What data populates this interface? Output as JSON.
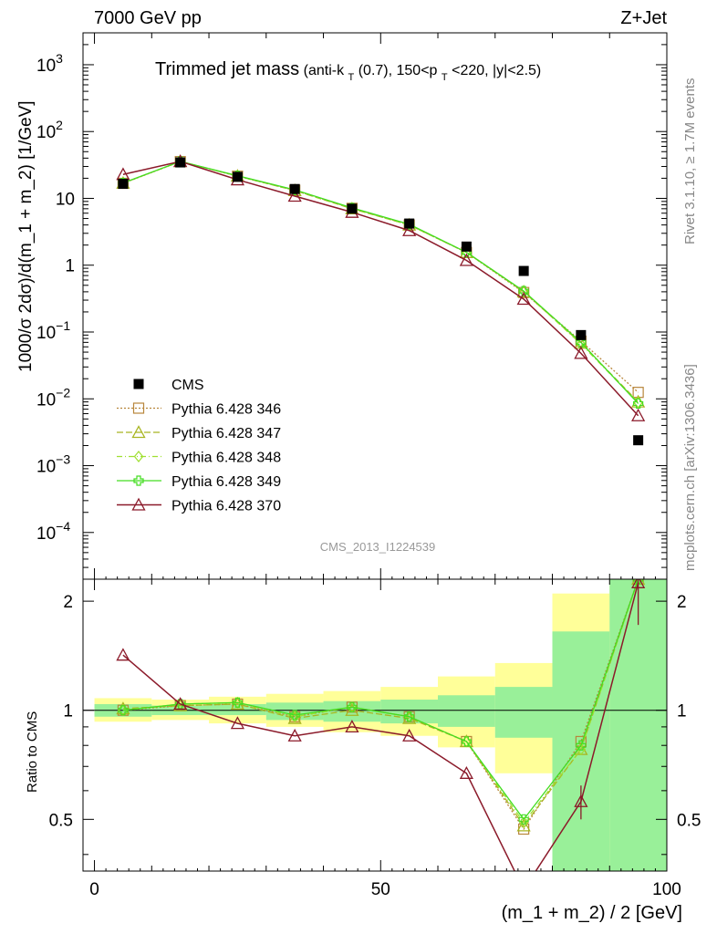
{
  "header": {
    "left": "7000 GeV pp",
    "right": "Z+Jet",
    "title_main": "Trimmed jet mass",
    "title_detail_parts": [
      "(anti-k",
      "T",
      "(0.7), 150<p",
      "T",
      "<220, |y|<2.5)"
    ],
    "rivet": "Rivet 3.1.10, ≥ 1.7M events",
    "mcplots": "mcplots.cern.ch [arXiv:1306.3436]",
    "analysis": "CMS_2013_I1224539"
  },
  "axes": {
    "main_ylabel": "1000/σ 2dσ)/d(m_1 + m_2) [1/GeV]",
    "ratio_ylabel": "Ratio to CMS",
    "xlabel": "(m_1 + m_2) / 2 [GeV]",
    "x_ticks": [
      "0",
      "50",
      "100"
    ],
    "main_y_ticks": [
      {
        "base": "10",
        "exp": "−4"
      },
      {
        "base": "10",
        "exp": "−3"
      },
      {
        "base": "10",
        "exp": "−2"
      },
      {
        "base": "10",
        "exp": "−1"
      },
      {
        "base": "1",
        "exp": ""
      },
      {
        "base": "10",
        "exp": ""
      },
      {
        "base": "10",
        "exp": "2"
      },
      {
        "base": "10",
        "exp": "3"
      }
    ],
    "ratio_y_ticks": [
      "0.5",
      "1",
      "2"
    ]
  },
  "colors": {
    "cms": "#000000",
    "p346": "#b8863b",
    "p347": "#a8b520",
    "p348": "#9fe030",
    "p349": "#44dd22",
    "p370": "#8b1a2a",
    "band_inner": "#99f099",
    "band_outer": "#ffff99"
  },
  "chart_data": {
    "type": "line",
    "x_range": [
      -2,
      100
    ],
    "main_ylim": [
      2e-05,
      3000
    ],
    "main_yscale": "log",
    "ratio_ylim": [
      0.36,
      2.3
    ],
    "ratio_yscale": "log",
    "x": [
      5,
      15,
      25,
      35,
      45,
      55,
      65,
      75,
      85,
      95
    ],
    "bin_edges": [
      0,
      10,
      20,
      30,
      40,
      50,
      60,
      70,
      80,
      90,
      100
    ],
    "cms": [
      16.5,
      34.5,
      21.0,
      13.8,
      7.0,
      4.2,
      1.9,
      0.82,
      0.09,
      0.0024
    ],
    "ratio_band_inner": [
      [
        0.96,
        1.04
      ],
      [
        0.97,
        1.03
      ],
      [
        0.97,
        1.04
      ],
      [
        0.94,
        1.05
      ],
      [
        0.93,
        1.06
      ],
      [
        0.92,
        1.07
      ],
      [
        0.9,
        1.1
      ],
      [
        0.84,
        1.16
      ],
      [
        0.35,
        1.65
      ],
      [
        0.35,
        2.3
      ]
    ],
    "ratio_band_outer": [
      [
        0.93,
        1.08
      ],
      [
        0.94,
        1.07
      ],
      [
        0.92,
        1.09
      ],
      [
        0.9,
        1.11
      ],
      [
        0.87,
        1.13
      ],
      [
        0.85,
        1.16
      ],
      [
        0.79,
        1.24
      ],
      [
        0.67,
        1.35
      ],
      [
        0.36,
        2.1
      ],
      [
        0.36,
        2.3
      ]
    ],
    "series": [
      {
        "name": "Pythia 6.428 346",
        "key": "p346",
        "marker": "square-open",
        "dash": "2,2",
        "values": [
          16.8,
          35.5,
          21.5,
          13.2,
          7.1,
          4.0,
          1.55,
          0.39,
          0.073,
          0.0125
        ],
        "ratio": [
          1.0,
          1.03,
          1.04,
          0.96,
          1.02,
          0.96,
          0.82,
          0.47,
          0.82,
          2.3
        ]
      },
      {
        "name": "Pythia 6.428 347",
        "key": "p347",
        "marker": "triangle-open",
        "dash": "7,3",
        "values": [
          16.9,
          35.6,
          21.6,
          13.1,
          7.0,
          4.0,
          1.55,
          0.4,
          0.068,
          0.009
        ],
        "ratio": [
          1.01,
          1.03,
          1.04,
          0.95,
          1.0,
          0.95,
          0.82,
          0.48,
          0.78,
          2.3
        ]
      },
      {
        "name": "Pythia 6.428 348",
        "key": "p348",
        "marker": "diamond-open",
        "dash": "6,3,1,3",
        "values": [
          16.9,
          35.7,
          21.7,
          13.3,
          7.1,
          4.0,
          1.56,
          0.41,
          0.066,
          0.0088
        ],
        "ratio": [
          1.0,
          1.04,
          1.05,
          0.96,
          1.02,
          0.96,
          0.82,
          0.49,
          0.78,
          2.3
        ]
      },
      {
        "name": "Pythia 6.428 349",
        "key": "p349",
        "marker": "cross-open",
        "dash": "",
        "values": [
          17.0,
          35.8,
          21.8,
          13.4,
          7.2,
          4.1,
          1.56,
          0.41,
          0.07,
          0.0085
        ],
        "ratio": [
          1.0,
          1.04,
          1.05,
          0.97,
          1.02,
          0.96,
          0.82,
          0.5,
          0.8,
          2.3
        ]
      },
      {
        "name": "Pythia 6.428 370",
        "key": "p370",
        "marker": "triangle-open",
        "dash": "",
        "values": [
          22.8,
          35.7,
          19.0,
          10.8,
          6.2,
          3.3,
          1.18,
          0.31,
          0.048,
          0.0056
        ],
        "ratio": [
          1.42,
          1.04,
          0.92,
          0.85,
          0.9,
          0.85,
          0.67,
          0.32,
          0.56,
          2.25
        ]
      }
    ]
  }
}
